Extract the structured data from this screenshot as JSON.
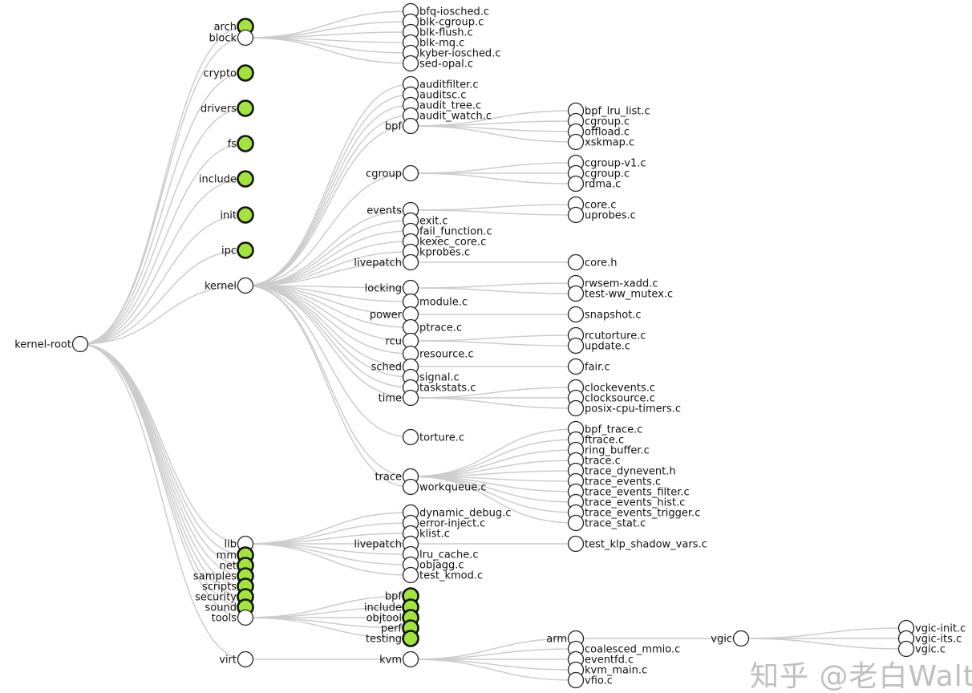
{
  "colors": {
    "link": "#cccccc",
    "collapsed_fill": "#a2e43c",
    "node_fill": "#ffffff"
  },
  "watermark": "知乎 @老白Walt",
  "tree": {
    "name": "kernel-root",
    "children": [
      {
        "name": "arch",
        "collapsed": true
      },
      {
        "name": "block",
        "children": [
          {
            "name": "bfq-iosched.c"
          },
          {
            "name": "blk-cgroup.c"
          },
          {
            "name": "blk-flush.c"
          },
          {
            "name": "blk-mq.c"
          },
          {
            "name": "kyber-iosched.c"
          },
          {
            "name": "sed-opal.c"
          }
        ]
      },
      {
        "name": "crypto",
        "collapsed": true
      },
      {
        "name": "drivers",
        "collapsed": true
      },
      {
        "name": "fs",
        "collapsed": true
      },
      {
        "name": "include",
        "collapsed": true
      },
      {
        "name": "init",
        "collapsed": true
      },
      {
        "name": "ipc",
        "collapsed": true
      },
      {
        "name": "kernel",
        "children": [
          {
            "name": "auditfilter.c"
          },
          {
            "name": "auditsc.c"
          },
          {
            "name": "audit_tree.c"
          },
          {
            "name": "audit_watch.c"
          },
          {
            "name": "bpf",
            "children": [
              {
                "name": "bpf_lru_list.c"
              },
              {
                "name": "cgroup.c"
              },
              {
                "name": "offload.c"
              },
              {
                "name": "xskmap.c"
              }
            ]
          },
          {
            "name": "cgroup",
            "children": [
              {
                "name": "cgroup-v1.c"
              },
              {
                "name": "cgroup.c"
              },
              {
                "name": "rdma.c"
              }
            ]
          },
          {
            "name": "events",
            "children": [
              {
                "name": "core.c"
              },
              {
                "name": "uprobes.c"
              }
            ]
          },
          {
            "name": "exit.c"
          },
          {
            "name": "fail_function.c"
          },
          {
            "name": "kexec_core.c"
          },
          {
            "name": "kprobes.c"
          },
          {
            "name": "livepatch",
            "children": [
              {
                "name": "core.h"
              }
            ]
          },
          {
            "name": "locking",
            "children": [
              {
                "name": "rwsem-xadd.c"
              },
              {
                "name": "test-ww_mutex.c"
              }
            ]
          },
          {
            "name": "module.c"
          },
          {
            "name": "power",
            "children": [
              {
                "name": "snapshot.c"
              }
            ]
          },
          {
            "name": "ptrace.c"
          },
          {
            "name": "rcu",
            "children": [
              {
                "name": "rcutorture.c"
              },
              {
                "name": "update.c"
              }
            ]
          },
          {
            "name": "resource.c"
          },
          {
            "name": "sched",
            "children": [
              {
                "name": "fair.c"
              }
            ]
          },
          {
            "name": "signal.c"
          },
          {
            "name": "taskstats.c"
          },
          {
            "name": "time",
            "children": [
              {
                "name": "clockevents.c"
              },
              {
                "name": "clocksource.c"
              },
              {
                "name": "posix-cpu-timers.c"
              }
            ]
          },
          {
            "name": "torture.c"
          },
          {
            "name": "trace",
            "children": [
              {
                "name": "bpf_trace.c"
              },
              {
                "name": "ftrace.c"
              },
              {
                "name": "ring_buffer.c"
              },
              {
                "name": "trace.c"
              },
              {
                "name": "trace_dynevent.h"
              },
              {
                "name": "trace_events.c"
              },
              {
                "name": "trace_events_filter.c"
              },
              {
                "name": "trace_events_hist.c"
              },
              {
                "name": "trace_events_trigger.c"
              },
              {
                "name": "trace_stat.c"
              }
            ]
          },
          {
            "name": "workqueue.c"
          }
        ]
      },
      {
        "name": "lib",
        "children": [
          {
            "name": "dynamic_debug.c"
          },
          {
            "name": "error-inject.c"
          },
          {
            "name": "klist.c"
          },
          {
            "name": "livepatch",
            "children": [
              {
                "name": "test_klp_shadow_vars.c"
              }
            ]
          },
          {
            "name": "lru_cache.c"
          },
          {
            "name": "objagg.c"
          },
          {
            "name": "test_kmod.c"
          }
        ]
      },
      {
        "name": "mm",
        "collapsed": true
      },
      {
        "name": "net",
        "collapsed": true
      },
      {
        "name": "samples",
        "collapsed": true
      },
      {
        "name": "scripts",
        "collapsed": true
      },
      {
        "name": "security",
        "collapsed": true
      },
      {
        "name": "sound",
        "collapsed": true
      },
      {
        "name": "tools",
        "children": [
          {
            "name": "bpf",
            "collapsed": true
          },
          {
            "name": "include",
            "collapsed": true
          },
          {
            "name": "objtool",
            "collapsed": true
          },
          {
            "name": "perf",
            "collapsed": true
          },
          {
            "name": "testing",
            "collapsed": true
          }
        ]
      },
      {
        "name": "virt",
        "children": [
          {
            "name": "kvm",
            "children": [
              {
                "name": "arm",
                "children": [
                  {
                    "name": "vgic",
                    "children": [
                      {
                        "name": "vgic-init.c"
                      },
                      {
                        "name": "vgic-its.c"
                      },
                      {
                        "name": "vgic.c"
                      }
                    ]
                  }
                ]
              },
              {
                "name": "coalesced_mmio.c"
              },
              {
                "name": "eventfd.c"
              },
              {
                "name": "kvm_main.c"
              },
              {
                "name": "vfio.c"
              }
            ]
          }
        ]
      }
    ]
  }
}
